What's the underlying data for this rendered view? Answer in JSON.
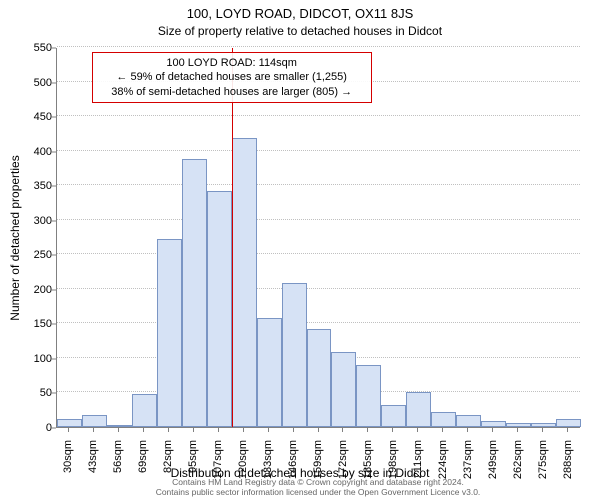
{
  "chart": {
    "type": "histogram",
    "title": "100, LOYD ROAD, DIDCOT, OX11 8JS",
    "subtitle": "Size of property relative to detached houses in Didcot",
    "ylabel": "Number of detached properties",
    "xlabel": "Distribution of detached houses by size in Didcot",
    "ylim": [
      0,
      550
    ],
    "ytick_step": 50,
    "yticks": [
      0,
      50,
      100,
      150,
      200,
      250,
      300,
      350,
      400,
      450,
      500,
      550
    ],
    "xticks": [
      "30sqm",
      "43sqm",
      "56sqm",
      "69sqm",
      "82sqm",
      "95sqm",
      "107sqm",
      "120sqm",
      "133sqm",
      "146sqm",
      "159sqm",
      "172sqm",
      "185sqm",
      "198sqm",
      "211sqm",
      "224sqm",
      "237sqm",
      "249sqm",
      "262sqm",
      "275sqm",
      "288sqm"
    ],
    "values": [
      12,
      18,
      3,
      48,
      272,
      388,
      342,
      418,
      158,
      208,
      142,
      108,
      90,
      32,
      50,
      22,
      18,
      8,
      6,
      6,
      12
    ],
    "bar_fill": "#d6e2f5",
    "bar_stroke": "#7a95c4",
    "background_color": "#ffffff",
    "grid_color": "#c0c0c0",
    "axis_color": "#808080",
    "ref_line": {
      "bin_index_after": 6,
      "color": "#d40000"
    },
    "annotation": {
      "line1": "100 LOYD ROAD: 114sqm",
      "line2": "← 59% of detached houses are smaller (1,255)",
      "line3": "38% of semi-detached houses are larger (805) →",
      "border_color": "#d40000"
    },
    "footer_line1": "Contains HM Land Registry data © Crown copyright and database right 2024.",
    "footer_line2": "Contains public sector information licensed under the Open Government Licence v3.0.",
    "footer_color": "#666666",
    "title_fontsize": 13,
    "subtitle_fontsize": 12,
    "label_fontsize": 12,
    "tick_fontsize": 11,
    "annot_fontsize": 11,
    "footer_fontsize": 8.5
  }
}
